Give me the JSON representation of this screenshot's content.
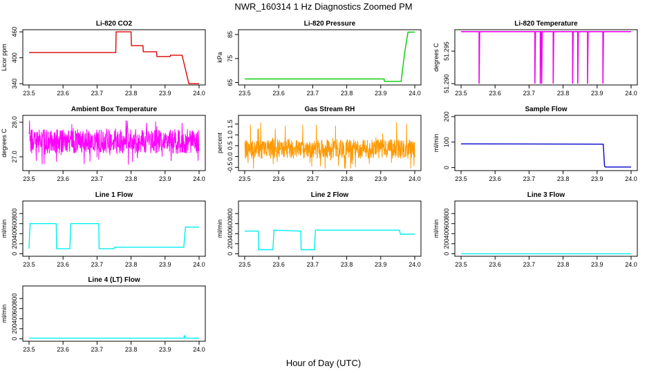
{
  "figure": {
    "title": "NWR_160314  1 Hz Diagnostics Zoomed PM",
    "xlabel": "Hour of Day (UTC)"
  },
  "chart_data": [
    {
      "type": "line",
      "title": "Li-820 CO2",
      "ylabel": "Licor ppm",
      "color": "#dd0000",
      "xlim": [
        23.5,
        24.0
      ],
      "ylim": [
        337,
        465
      ],
      "xticks": [
        23.5,
        23.6,
        23.7,
        23.8,
        23.9,
        24.0
      ],
      "yticks": [
        340,
        400,
        460
      ],
      "x": [
        23.5,
        23.755,
        23.756,
        23.8,
        23.801,
        23.835,
        23.836,
        23.875,
        23.876,
        23.915,
        23.916,
        23.95,
        23.97,
        24.0
      ],
      "y": [
        412,
        412,
        460,
        460,
        428,
        428,
        414,
        414,
        403,
        403,
        406,
        406,
        340,
        340
      ]
    },
    {
      "type": "line",
      "title": "Li-820 Pressure",
      "ylabel": "kPa",
      "color": "#00cc00",
      "xlim": [
        23.5,
        24.0
      ],
      "ylim": [
        64,
        87
      ],
      "xticks": [
        23.5,
        23.6,
        23.7,
        23.8,
        23.9,
        24.0
      ],
      "yticks": [
        65,
        75,
        85
      ],
      "x": [
        23.5,
        23.91,
        23.911,
        23.96,
        23.97,
        23.98,
        24.0
      ],
      "y": [
        66.5,
        66.5,
        65.5,
        65.5,
        77,
        86,
        86
      ]
    },
    {
      "type": "line",
      "title": "Li-820 Temperature",
      "ylabel": "degrees C",
      "color": "#ee00ee",
      "xlim": [
        23.5,
        24.0
      ],
      "ylim": [
        51.2898,
        51.2983
      ],
      "xticks": [
        23.5,
        23.6,
        23.7,
        23.8,
        23.9,
        24.0
      ],
      "yticks": [
        51.29,
        51.295
      ],
      "ytick_labels": [
        "51.290",
        "51.295"
      ],
      "baseline": 51.298,
      "dip_to": 51.29,
      "dips": [
        23.553,
        23.717,
        23.733,
        23.737,
        23.771,
        23.828,
        23.843,
        23.872,
        23.917
      ]
    },
    {
      "type": "line",
      "title": "Ambient Box Temperature",
      "ylabel": "degrees C",
      "color": "#ff00ff",
      "xlim": [
        23.5,
        24.0
      ],
      "ylim": [
        26.6,
        28.2
      ],
      "xticks": [
        23.5,
        23.6,
        23.7,
        23.8,
        23.9,
        24.0
      ],
      "yticks": [
        27.0,
        28.0
      ],
      "ytick_labels": [
        "27.0",
        "28.0"
      ],
      "noise": {
        "center": 27.45,
        "half_width": 0.35,
        "min": 26.75,
        "max": 28.05
      }
    },
    {
      "type": "line",
      "title": "Gas Stream RH",
      "ylabel": "percent",
      "color": "#ff9900",
      "xlim": [
        23.5,
        24.0
      ],
      "ylim": [
        -0.65,
        1.9
      ],
      "xticks": [
        23.5,
        23.6,
        23.7,
        23.8,
        23.9,
        24.0
      ],
      "yticks": [
        -0.5,
        0.0,
        0.5,
        1.0,
        1.5
      ],
      "ytick_labels": [
        "-0.5",
        "0.0",
        "0.5",
        "1.0",
        "1.5"
      ],
      "noise": {
        "center": 0.35,
        "half_width": 0.45,
        "min": -0.55,
        "max": 1.7
      }
    },
    {
      "type": "line",
      "title": "Sample Flow",
      "ylabel": "ml/min",
      "color": "#0000cc",
      "xlim": [
        23.5,
        24.0
      ],
      "ylim": [
        -12,
        205
      ],
      "xticks": [
        23.5,
        23.6,
        23.7,
        23.8,
        23.9,
        24.0
      ],
      "yticks": [
        0,
        100,
        200
      ],
      "x": [
        23.5,
        23.918,
        23.922,
        23.925,
        24.0
      ],
      "y": [
        93,
        92,
        5,
        2,
        2
      ]
    },
    {
      "type": "line",
      "title": "Line 1 Flow",
      "ylabel": "ml/min",
      "color": "#00eeee",
      "xlim": [
        23.5,
        24.0
      ],
      "ylim": [
        -50,
        1050
      ],
      "xticks": [
        23.5,
        23.6,
        23.7,
        23.8,
        23.9,
        24.0
      ],
      "yticks": [
        0,
        200,
        400,
        600,
        800
      ],
      "x": [
        23.5,
        23.503,
        23.58,
        23.581,
        23.62,
        23.623,
        23.705,
        23.706,
        23.75,
        23.751,
        23.955,
        23.96,
        24.0
      ],
      "y": [
        100,
        600,
        600,
        100,
        100,
        600,
        600,
        100,
        100,
        130,
        130,
        530,
        530
      ]
    },
    {
      "type": "line",
      "title": "Line 2 Flow",
      "ylabel": "ml/min",
      "color": "#00eeee",
      "xlim": [
        23.5,
        24.0
      ],
      "ylim": [
        -50,
        1050
      ],
      "xticks": [
        23.5,
        23.6,
        23.7,
        23.8,
        23.9,
        24.0
      ],
      "yticks": [
        0,
        200,
        400,
        600,
        800
      ],
      "x": [
        23.5,
        23.54,
        23.541,
        23.583,
        23.586,
        23.665,
        23.666,
        23.705,
        23.708,
        23.955,
        23.958,
        24.0
      ],
      "y": [
        450,
        450,
        80,
        80,
        470,
        450,
        80,
        80,
        470,
        470,
        390,
        390
      ]
    },
    {
      "type": "line",
      "title": "Line 3 Flow",
      "ylabel": "ml/min",
      "color": "#00eeee",
      "xlim": [
        23.5,
        24.0
      ],
      "ylim": [
        -50,
        1050
      ],
      "xticks": [
        23.5,
        23.6,
        23.7,
        23.8,
        23.9,
        24.0
      ],
      "yticks": [
        0,
        200,
        400,
        600,
        800
      ],
      "x": [
        23.5,
        24.0
      ],
      "y": [
        0,
        0
      ]
    },
    {
      "type": "line",
      "title": "Line 4 (LT) Flow",
      "ylabel": "ml/min",
      "color": "#00eeee",
      "xlim": [
        23.5,
        24.0
      ],
      "ylim": [
        -50,
        1050
      ],
      "xticks": [
        23.5,
        23.6,
        23.7,
        23.8,
        23.9,
        24.0
      ],
      "yticks": [
        0,
        200,
        400,
        600,
        800
      ],
      "x": [
        23.5,
        23.955,
        23.957,
        23.959,
        24.0
      ],
      "y": [
        10,
        10,
        70,
        10,
        10
      ]
    }
  ]
}
